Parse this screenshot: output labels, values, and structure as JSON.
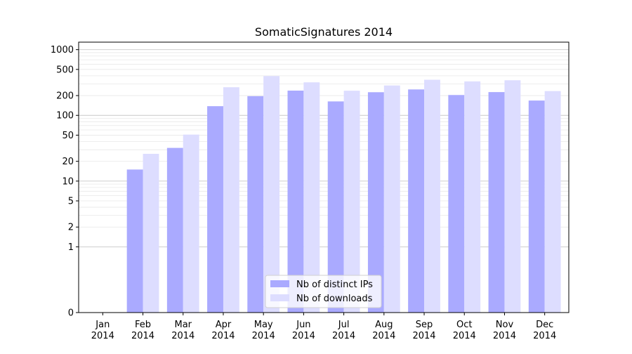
{
  "chart_data": {
    "type": "bar",
    "title": "SomaticSignatures 2014",
    "xlabel": "",
    "ylabel": "",
    "y_scale": "symlog",
    "ylim": [
      0,
      1300
    ],
    "y_ticks": [
      {
        "value": 0,
        "label": "0"
      },
      {
        "value": 1,
        "label": "1"
      },
      {
        "value": 2,
        "label": "2"
      },
      {
        "value": 5,
        "label": "5"
      },
      {
        "value": 10,
        "label": "10"
      },
      {
        "value": 20,
        "label": "20"
      },
      {
        "value": 50,
        "label": "50"
      },
      {
        "value": 100,
        "label": "100"
      },
      {
        "value": 200,
        "label": "200"
      },
      {
        "value": 500,
        "label": "500"
      },
      {
        "value": 1000,
        "label": "1000"
      }
    ],
    "categories": [
      [
        "Jan",
        "2014"
      ],
      [
        "Feb",
        "2014"
      ],
      [
        "Mar",
        "2014"
      ],
      [
        "Apr",
        "2014"
      ],
      [
        "May",
        "2014"
      ],
      [
        "Jun",
        "2014"
      ],
      [
        "Jul",
        "2014"
      ],
      [
        "Aug",
        "2014"
      ],
      [
        "Sep",
        "2014"
      ],
      [
        "Oct",
        "2014"
      ],
      [
        "Nov",
        "2014"
      ],
      [
        "Dec",
        "2014"
      ]
    ],
    "series": [
      {
        "name": "Nb of distinct IPs",
        "color": "#aaaaff",
        "values": [
          0,
          15,
          32,
          138,
          196,
          238,
          163,
          225,
          248,
          204,
          226,
          168
        ]
      },
      {
        "name": "Nb of downloads",
        "color": "#ddddff",
        "values": [
          0,
          26,
          51,
          268,
          396,
          318,
          237,
          285,
          348,
          329,
          342,
          234
        ]
      }
    ],
    "grid": true,
    "legend_position": "bottom-center"
  }
}
